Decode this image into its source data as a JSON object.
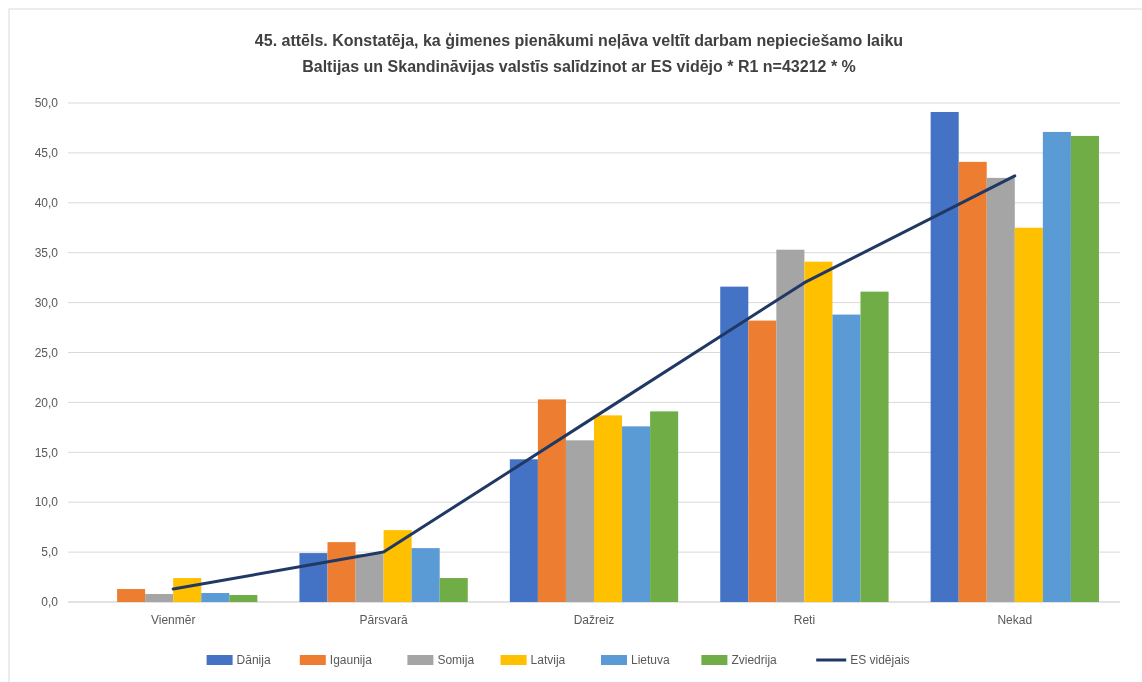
{
  "chart_data": {
    "type": "bar",
    "title": "45. attēls. Konstatēja, ka ģimenes pienākumi neļāva veltīt darbam nepieciešamo laiku",
    "subtitle": "Baltijas un Skandināvijas valstīs salīdzinot ar ES vidējo * R1 n=43212 * %",
    "categories": [
      "Vienmēr",
      "Pārsvarā",
      "Dažreiz",
      "Reti",
      "Nekad"
    ],
    "series": [
      {
        "name": "Dānija",
        "color": "#4472c4",
        "values": [
          null,
          4.9,
          14.3,
          31.6,
          49.1
        ]
      },
      {
        "name": "Igaunija",
        "color": "#ed7d31",
        "values": [
          1.3,
          6.0,
          20.3,
          28.2,
          44.1
        ]
      },
      {
        "name": "Somija",
        "color": "#a5a5a5",
        "values": [
          0.8,
          4.8,
          16.2,
          35.3,
          42.5
        ]
      },
      {
        "name": "Latvija",
        "color": "#ffc000",
        "values": [
          2.4,
          7.2,
          18.7,
          34.1,
          37.5
        ]
      },
      {
        "name": "Lietuva",
        "color": "#5b9bd5",
        "values": [
          0.9,
          5.4,
          17.6,
          28.8,
          47.1
        ]
      },
      {
        "name": "Zviedrija",
        "color": "#70ad47",
        "values": [
          0.7,
          2.4,
          19.1,
          31.1,
          46.7
        ]
      },
      {
        "name": "ES vidējais",
        "color": "#203864",
        "type": "line",
        "values": [
          1.3,
          5.0,
          18.5,
          32.0,
          42.7
        ]
      }
    ],
    "ylim": [
      0,
      50
    ],
    "yticks": [
      {
        "value": 0,
        "label": "0,0"
      },
      {
        "value": 5,
        "label": "5,0"
      },
      {
        "value": 10,
        "label": "10,0"
      },
      {
        "value": 15,
        "label": "15,0"
      },
      {
        "value": 20,
        "label": "20,0"
      },
      {
        "value": 25,
        "label": "25,0"
      },
      {
        "value": 30,
        "label": "30,0"
      },
      {
        "value": 35,
        "label": "35,0"
      },
      {
        "value": 40,
        "label": "40,0"
      },
      {
        "value": 45,
        "label": "45,0"
      },
      {
        "value": 50,
        "label": "50,0"
      }
    ],
    "grid": "y",
    "legend": "bottom",
    "marker": "none"
  }
}
